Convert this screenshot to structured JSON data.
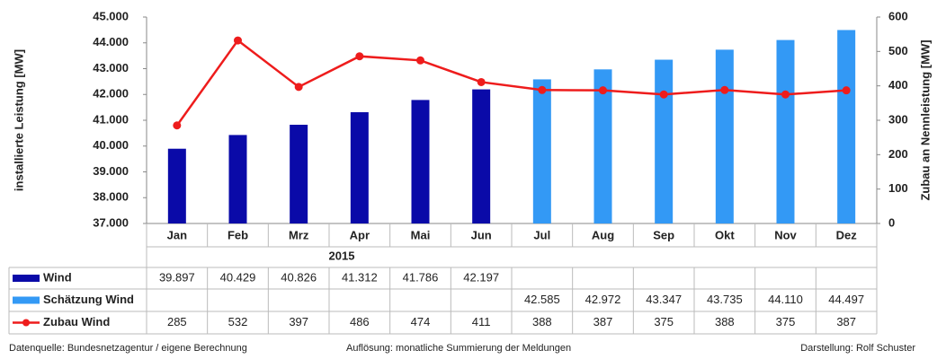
{
  "chart_data": {
    "type": "bar",
    "categories": [
      "Jan",
      "Feb",
      "Mrz",
      "Apr",
      "Mai",
      "Jun",
      "Jul",
      "Aug",
      "Sep",
      "Okt",
      "Nov",
      "Dez"
    ],
    "xlabel": "2015",
    "ylabel": "installierte Leistung  [MW]",
    "y2label": "Zubau an Nennleistung  [MW]",
    "ylim": [
      37000,
      45000
    ],
    "yticks": [
      {
        "value": 37000,
        "label": "37.000"
      },
      {
        "value": 38000,
        "label": "38.000"
      },
      {
        "value": 39000,
        "label": "39.000"
      },
      {
        "value": 40000,
        "label": "40.000"
      },
      {
        "value": 41000,
        "label": "41.000"
      },
      {
        "value": 42000,
        "label": "42.000"
      },
      {
        "value": 43000,
        "label": "43.000"
      },
      {
        "value": 44000,
        "label": "44.000"
      },
      {
        "value": 45000,
        "label": "45.000"
      }
    ],
    "y2lim": [
      0,
      600
    ],
    "y2ticks": [
      0,
      100,
      200,
      300,
      400,
      500,
      600
    ],
    "series": [
      {
        "name": "Wind",
        "type": "bar",
        "color": "#0a0aa8",
        "values": [
          39897,
          40429,
          40826,
          41312,
          41786,
          42197,
          null,
          null,
          null,
          null,
          null,
          null
        ],
        "value_labels": [
          "39.897",
          "40.429",
          "40.826",
          "41.312",
          "41.786",
          "42.197",
          null,
          null,
          null,
          null,
          null,
          null
        ]
      },
      {
        "name": "Schätzung Wind",
        "type": "bar",
        "color": "#3399f5",
        "values": [
          null,
          null,
          null,
          null,
          null,
          null,
          42585,
          42972,
          43347,
          43735,
          44110,
          44497
        ],
        "value_labels": [
          null,
          null,
          null,
          null,
          null,
          null,
          "42.585",
          "42.972",
          "43.347",
          "43.735",
          "44.110",
          "44.497"
        ]
      },
      {
        "name": "Zubau Wind",
        "type": "line",
        "axis": "y2",
        "color": "#ee1c1c",
        "values": [
          285,
          532,
          397,
          486,
          474,
          411,
          388,
          387,
          375,
          388,
          375,
          387
        ]
      }
    ]
  },
  "footer": {
    "source": "Datenquelle: Bundesnetzagentur / eigene Berechnung",
    "method": "Auflösung: monatliche Summierung der Meldungen",
    "author": "Darstellung: Rolf Schuster"
  }
}
